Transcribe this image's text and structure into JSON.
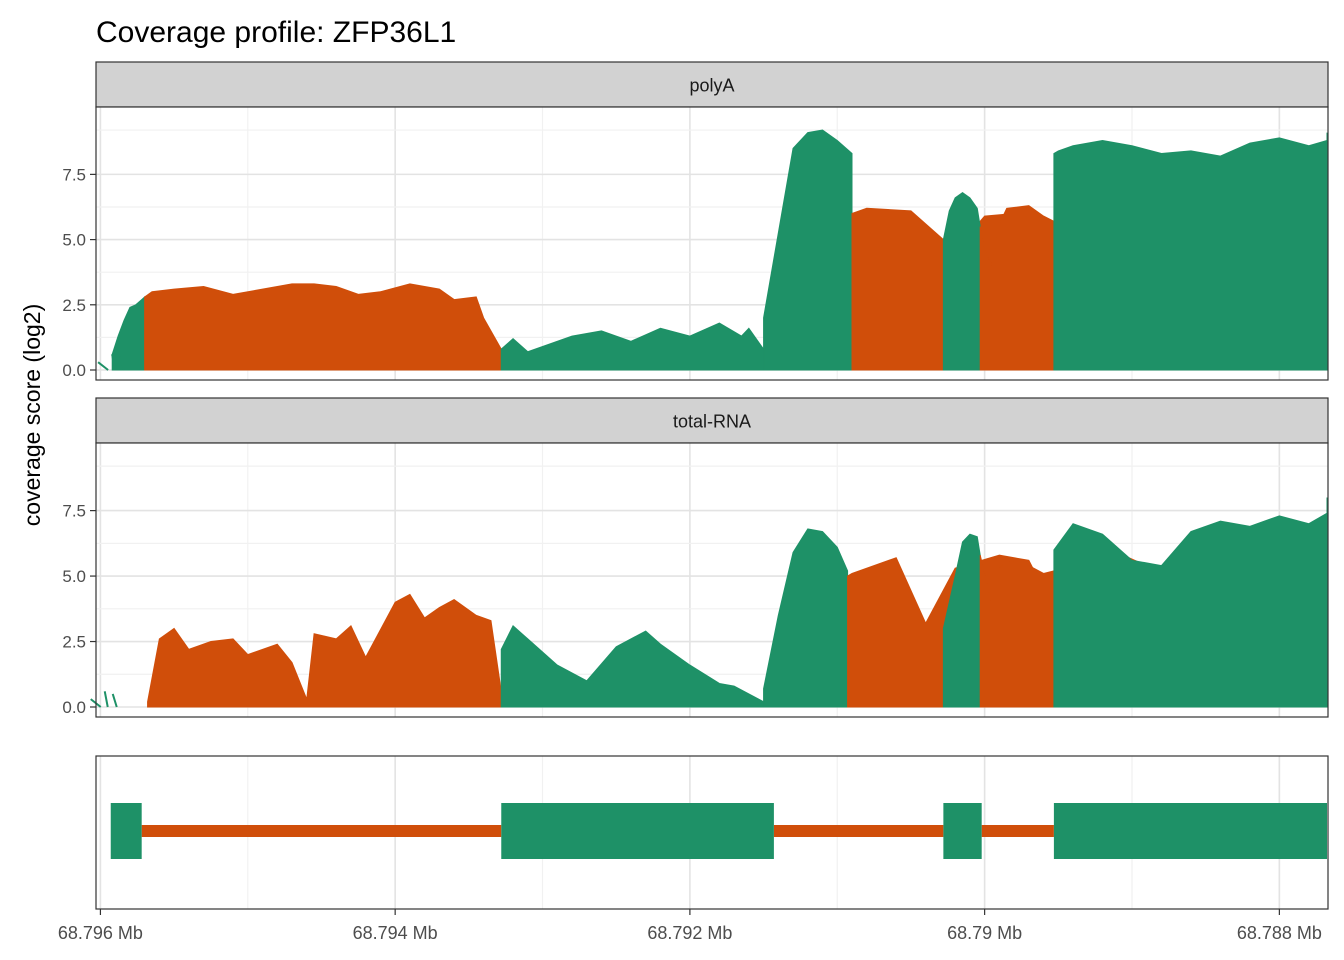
{
  "colors": {
    "exon": "#1E9167",
    "intron": "#D04E0A",
    "strip": "#D2D2D2",
    "grid_major": "#E3E3E3",
    "grid_minor": "#F1F1F1",
    "frame": "#333333"
  },
  "chart_data": {
    "type": "area",
    "title": "Coverage profile: ZFP36L1",
    "ylabel": "coverage score (log2)",
    "xlabel": "",
    "x_reversed": true,
    "xlim": [
      68.79603,
      68.78767
    ],
    "x_ticks": [
      68.796,
      68.794,
      68.792,
      68.79,
      68.788
    ],
    "x_tick_labels": [
      "68.796 Mb",
      "68.794 Mb",
      "68.792 Mb",
      "68.79 Mb",
      "68.788 Mb"
    ],
    "ylim": [
      0,
      9.7
    ],
    "y_ticks": [
      0,
      2.5,
      5,
      7.5
    ],
    "y_tick_labels": [
      "0.0",
      "2.5",
      "5.0",
      "7.5"
    ],
    "grid": true,
    "legend": "none",
    "panels": [
      {
        "name": "polyA",
        "noise_start": 68.79588,
        "segments": [
          {
            "region": "exon",
            "start": 68.7957,
            "end": 68.79592,
            "x": [
              68.79592,
              68.79588,
              68.79584,
              68.7958,
              68.79576,
              68.79572,
              68.7957
            ],
            "y": [
              0.6,
              1.3,
              1.9,
              2.4,
              2.5,
              2.7,
              2.8
            ]
          },
          {
            "region": "intron",
            "start": 68.79328,
            "end": 68.7957,
            "x": [
              68.7957,
              68.79565,
              68.7955,
              68.7953,
              68.7951,
              68.7949,
              68.7947,
              68.79455,
              68.7944,
              68.79425,
              68.7941,
              68.7939,
              68.7937,
              68.7936,
              68.79345,
              68.7934,
              68.79328
            ],
            "y": [
              2.8,
              3.0,
              3.1,
              3.2,
              2.9,
              3.1,
              3.3,
              3.3,
              3.2,
              2.9,
              3.0,
              3.3,
              3.1,
              2.7,
              2.8,
              2.0,
              0.8
            ]
          },
          {
            "region": "exon",
            "start": 68.7915,
            "end": 68.79328,
            "x": [
              68.79328,
              68.7932,
              68.7931,
              68.7928,
              68.7926,
              68.7924,
              68.7922,
              68.792,
              68.7918,
              68.79165,
              68.7916,
              68.7915
            ],
            "y": [
              0.8,
              1.2,
              0.7,
              1.3,
              1.5,
              1.1,
              1.6,
              1.3,
              1.8,
              1.3,
              1.6,
              0.8
            ]
          },
          {
            "region": "exon",
            "start": 68.7909,
            "end": 68.7915,
            "x": [
              68.7915,
              68.7913,
              68.7912,
              68.7911,
              68.791,
              68.7909
            ],
            "y": [
              2.0,
              8.5,
              9.1,
              9.2,
              8.8,
              8.3
            ]
          },
          {
            "region": "intron",
            "start": 68.78928,
            "end": 68.7909,
            "x": [
              68.7909,
              68.7908,
              68.7905,
              68.7902,
              68.79,
              68.7898,
              68.7896,
              68.7893,
              68.7891,
              68.7888,
              68.7885,
              68.7882,
              68.7879,
              68.7876,
              68.7873,
              68.7872,
              68.787,
              68.7867,
              68.7864,
              68.78928
            ],
            "y": [
              6.0,
              6.2,
              6.1,
              4.6,
              5.9,
              6.0,
              5.8,
              3.2,
              5.8,
              6.0,
              5.8,
              3.6,
              5.9,
              6.2,
              6.1,
              5.5,
              5.8,
              6.0,
              5.5,
              5.5
            ]
          },
          {
            "region": "exon",
            "start": 68.79003,
            "end": 68.79028,
            "x": [
              68.79028,
              68.79024,
              68.7902,
              68.79015,
              68.7901,
              68.79005,
              68.79003
            ],
            "y": [
              5.0,
              6.1,
              6.6,
              6.8,
              6.6,
              6.2,
              5.5
            ]
          },
          {
            "region": "intron",
            "start": 68.78953,
            "end": 68.79003,
            "x": [
              68.79003,
              68.79,
              68.78995,
              68.7899,
              68.78985,
              68.7897,
              68.7896,
              68.78953
            ],
            "y": [
              5.5,
              4.6,
              4.0,
              5.6,
              6.2,
              6.3,
              5.9,
              5.7
            ]
          },
          {
            "region": "exon",
            "start": 68.78766,
            "end": 68.78953,
            "x": [
              68.78953,
              68.7895,
              68.7894,
              68.7892,
              68.789,
              68.7888,
              68.7886,
              68.7884,
              68.7882,
              68.788,
              68.7878,
              68.7876,
              68.7874,
              68.7872,
              68.787,
              68.7869,
              68.7868,
              68.7867,
              68.78766
            ],
            "y": [
              8.3,
              8.4,
              8.6,
              8.8,
              8.6,
              8.3,
              8.4,
              8.2,
              8.7,
              8.9,
              8.6,
              8.8,
              9.0,
              8.2,
              6.2,
              8.6,
              9.1,
              8.8,
              1.0
            ]
          }
        ]
      },
      {
        "name": "total-RNA",
        "noise_start": 68.79593,
        "segments": [
          {
            "region": "intron",
            "start": 68.79328,
            "end": 68.79568,
            "x": [
              68.79568,
              68.7956,
              68.7955,
              68.7954,
              68.79525,
              68.7951,
              68.795,
              68.7948,
              68.7947,
              68.7946,
              68.79455,
              68.7944,
              68.7943,
              68.7942,
              68.794,
              68.7939,
              68.7938,
              68.7937,
              68.7936,
              68.79345,
              68.79335,
              68.79328
            ],
            "y": [
              0.2,
              2.6,
              3.0,
              2.2,
              2.5,
              2.6,
              2.0,
              2.4,
              1.7,
              0.3,
              2.8,
              2.6,
              3.1,
              1.9,
              4.0,
              4.3,
              3.4,
              3.8,
              4.1,
              3.5,
              3.3,
              0.6
            ]
          },
          {
            "region": "exon",
            "start": 68.7915,
            "end": 68.79328,
            "x": [
              68.79328,
              68.7932,
              68.7931,
              68.7929,
              68.7927,
              68.7925,
              68.7923,
              68.7922,
              68.792,
              68.7918,
              68.7917,
              68.7915
            ],
            "y": [
              2.2,
              3.1,
              2.6,
              1.6,
              1.0,
              2.3,
              2.9,
              2.4,
              1.6,
              0.9,
              0.8,
              0.2
            ]
          },
          {
            "region": "exon",
            "start": 68.79093,
            "end": 68.7915,
            "x": [
              68.7915,
              68.7914,
              68.7913,
              68.7912,
              68.7911,
              68.791,
              68.79093
            ],
            "y": [
              0.7,
              3.5,
              5.9,
              6.8,
              6.7,
              6.1,
              5.2
            ]
          },
          {
            "region": "intron",
            "start": 68.78928,
            "end": 68.79093,
            "x": [
              68.79093,
              68.7909,
              68.7906,
              68.7904,
              68.7902,
              68.7899,
              68.7897,
              68.7895,
              68.7893,
              68.7891,
              68.7889,
              68.7887,
              68.7885,
              68.7883,
              68.7881,
              68.7879,
              68.7877,
              68.7875,
              68.7874,
              68.78928
            ],
            "y": [
              5.0,
              5.1,
              5.7,
              3.2,
              5.3,
              5.8,
              5.6,
              3.4,
              5.5,
              5.9,
              5.4,
              3.2,
              5.6,
              6.1,
              5.8,
              4.0,
              5.7,
              6.0,
              5.0,
              5.0
            ]
          },
          {
            "region": "exon",
            "start": 68.79003,
            "end": 68.79028,
            "x": [
              68.79028,
              68.7902,
              68.79015,
              68.7901,
              68.79005,
              68.79003
            ],
            "y": [
              3.0,
              5.0,
              6.3,
              6.6,
              6.5,
              5.8
            ]
          },
          {
            "region": "intron",
            "start": 68.78953,
            "end": 68.79003,
            "x": [
              68.79003,
              68.78995,
              68.7899,
              68.78985,
              68.7897,
              68.7896,
              68.78953
            ],
            "y": [
              5.8,
              3.9,
              5.3,
              5.6,
              5.4,
              5.1,
              5.2
            ]
          },
          {
            "region": "exon",
            "start": 68.78766,
            "end": 68.78953,
            "x": [
              68.78953,
              68.7894,
              68.7892,
              68.789,
              68.7888,
              68.7886,
              68.7884,
              68.7882,
              68.788,
              68.7878,
              68.7876,
              68.7874,
              68.7873,
              68.7872,
              68.787,
              68.7868,
              68.7866,
              68.7865,
              68.78766
            ],
            "y": [
              6.0,
              7.0,
              6.6,
              5.6,
              5.4,
              6.7,
              7.1,
              6.9,
              7.3,
              7.0,
              7.4,
              5.2,
              7.2,
              7.4,
              4.6,
              6.8,
              7.7,
              8.0,
              2.8
            ]
          }
        ]
      }
    ],
    "gene_model": {
      "exons": [
        [
          68.79593,
          68.79572
        ],
        [
          68.79328,
          68.79143
        ],
        [
          68.79028,
          68.79002
        ],
        [
          68.78953,
          68.7867
        ]
      ],
      "introns": [
        [
          68.79572,
          68.79328
        ],
        [
          68.79143,
          68.79028
        ],
        [
          68.79002,
          68.78953
        ]
      ]
    }
  }
}
